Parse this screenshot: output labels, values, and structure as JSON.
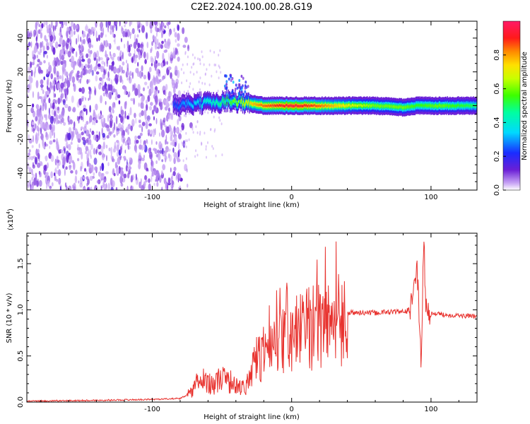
{
  "title": "C2E2.2024.100.00.28.G19",
  "colors": {
    "spectrogram_noise": "#7a2bd8",
    "snr_line": "#e8332f",
    "axis": "#000000"
  },
  "chart_data": [
    {
      "type": "heatmap",
      "title": "C2E2.2024.100.00.28.G19",
      "xlabel": "Height of straight line (km)",
      "ylabel": "Frequency (Hz)",
      "xlim": [
        -190,
        133
      ],
      "ylim": [
        -50,
        50
      ],
      "xticks": [
        -100,
        0,
        100
      ],
      "xtick_labels": [
        "-100",
        "0",
        "100"
      ],
      "yticks": [
        -40,
        -20,
        0,
        20,
        40
      ],
      "ytick_labels": [
        "-40",
        "-20",
        "0",
        "20",
        "40"
      ],
      "noise_region_x": [
        -190,
        -80
      ],
      "signal_track": [
        {
          "x": -85,
          "freq": 0,
          "amp": 0.25
        },
        {
          "x": -70,
          "freq": 1,
          "amp": 0.35
        },
        {
          "x": -55,
          "freq": 2,
          "amp": 0.45
        },
        {
          "x": -45,
          "freq": 3,
          "amp": 0.55
        },
        {
          "x": -35,
          "freq": 2,
          "amp": 0.7
        },
        {
          "x": -20,
          "freq": 0,
          "amp": 0.85
        },
        {
          "x": 0,
          "freq": 0,
          "amp": 0.95
        },
        {
          "x": 20,
          "freq": 0,
          "amp": 0.85
        },
        {
          "x": 40,
          "freq": 0,
          "amp": 0.7
        },
        {
          "x": 60,
          "freq": 0,
          "amp": 0.6
        },
        {
          "x": 80,
          "freq": -1,
          "amp": 0.6
        },
        {
          "x": 90,
          "freq": 0,
          "amp": 0.55
        },
        {
          "x": 105,
          "freq": 0,
          "amp": 0.6
        },
        {
          "x": 133,
          "freq": 0,
          "amp": 0.5
        }
      ],
      "colorbar": {
        "label": "Normalized spectral amplitude",
        "range": [
          0,
          1
        ],
        "ticks": [
          0.0,
          0.2,
          0.4,
          0.6,
          0.8
        ],
        "tick_labels": [
          "0.0",
          "0.2",
          "0.4",
          "0.6",
          "0.8"
        ]
      },
      "grid": false
    },
    {
      "type": "line",
      "xlabel": "Height of straight line (km)",
      "ylabel": "SNR (10 * v/v)",
      "y_scale_label": "(x10",
      "y_scale_exp": "4",
      "y_scale_suffix": ")",
      "xlim": [
        -190,
        133
      ],
      "ylim": [
        0,
        1.83
      ],
      "xticks": [
        -100,
        0,
        100
      ],
      "xtick_labels": [
        "-100",
        "0",
        "100"
      ],
      "yticks": [
        0.0,
        0.5,
        1.0,
        1.5
      ],
      "ytick_labels": [
        "0.0",
        "0.5",
        "1.0",
        "1.5"
      ],
      "series": [
        {
          "x": [
            -190,
            -140,
            -100,
            -80,
            -72,
            -68,
            -62,
            -55,
            -50,
            -45,
            -40,
            -35,
            -30,
            -27,
            -24,
            -20,
            -15,
            -10,
            -5,
            0,
            10,
            20,
            30,
            40,
            50,
            60,
            70,
            80,
            85,
            88,
            90,
            92,
            93,
            94,
            95,
            96,
            97,
            100,
            110,
            120,
            133
          ],
          "y": [
            0.01,
            0.02,
            0.03,
            0.04,
            0.1,
            0.22,
            0.25,
            0.2,
            0.3,
            0.22,
            0.18,
            0.17,
            0.2,
            0.45,
            0.5,
            0.55,
            0.6,
            0.65,
            0.68,
            0.72,
            0.82,
            0.9,
            0.95,
            0.97,
            0.97,
            0.97,
            0.98,
            0.98,
            1.0,
            1.3,
            1.45,
            0.8,
            0.35,
            1.25,
            1.8,
            1.1,
            1.0,
            0.96,
            0.95,
            0.94,
            0.93
          ]
        }
      ],
      "grid": false
    }
  ]
}
